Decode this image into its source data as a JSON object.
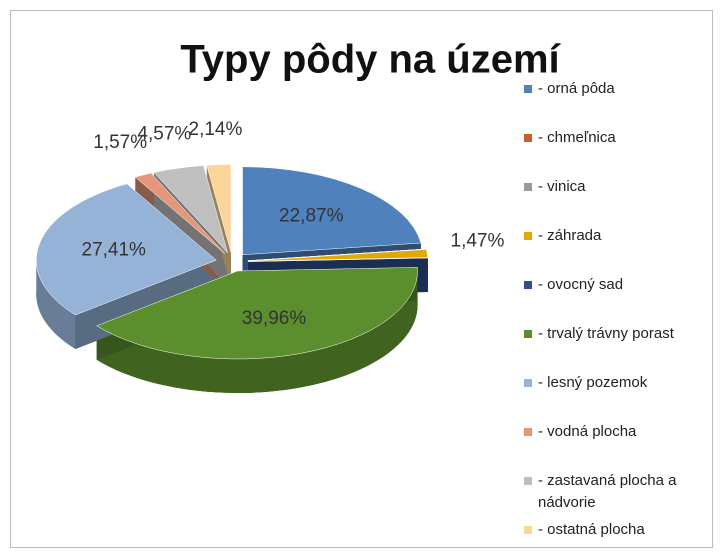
{
  "chart_data": {
    "type": "pie3d",
    "title": "Typy pôdy na území",
    "categories": [
      "- orná pôda",
      "- chmeľnica",
      "- vinica",
      "- záhrada",
      "- ovocný sad",
      "- trvalý trávny porast",
      "- lesný pozemok",
      "- vodná plocha",
      "- zastavaná plocha a nádvorie",
      "- ostatná plocha"
    ],
    "values": [
      22.87,
      0,
      0,
      1.47,
      0,
      39.96,
      27.41,
      1.57,
      4.57,
      2.14
    ],
    "value_labels": [
      "22,87%",
      null,
      null,
      "1,47%",
      null,
      "39,96%",
      "27,41%",
      "1,57%",
      "4,57%",
      "2,14%"
    ],
    "colors": [
      "#4f81bd",
      "#c0612b",
      "#9a9a9a",
      "#e0a800",
      "#2c4d8a",
      "#5b8f2e",
      "#95b3d7",
      "#e6967a",
      "#bfbfbf",
      "#fcd59a"
    ],
    "legend": "right"
  }
}
